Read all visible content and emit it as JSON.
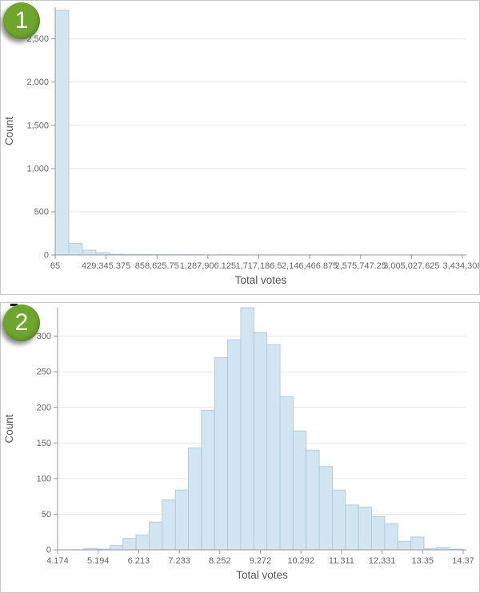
{
  "cards": [
    {
      "badge": "1"
    },
    {
      "badge": "2"
    }
  ],
  "colors": {
    "badge_green": "#6fa52d",
    "bar_fill": "#d3e5f0",
    "bar_stroke": "#aecde1",
    "axis_line": "#999999",
    "grid_line": "#e7e7e7",
    "tick_text": "#666666",
    "axis_title_text": "#575757"
  },
  "chart_data": [
    {
      "type": "bar",
      "title": "",
      "xlabel": "Total votes",
      "ylabel": "Count",
      "grid": "horizontal",
      "legend": "none",
      "bin_start": 65,
      "bin_width": 114474.77,
      "counts": [
        2830,
        135,
        55,
        27,
        8,
        6,
        5,
        3,
        2,
        4,
        2,
        1,
        2,
        1,
        0,
        1,
        0,
        1,
        0,
        0,
        1,
        0,
        0,
        0,
        0,
        0,
        0,
        0,
        0,
        1
      ],
      "xlim": [
        65,
        3434308
      ],
      "ylim": [
        0,
        2866
      ],
      "x_ticks": {
        "values": [
          65,
          429345.375,
          858625.75,
          1287906.125,
          1717186.5,
          2146466.875,
          2575747.25,
          3005027.625,
          3434308
        ],
        "labels": [
          "65",
          "429,345.375",
          "858,625.75",
          "1,287,906.125",
          "1,717,186.5",
          "2,146,466.875",
          "2,575,747.25",
          "3,005,027.625",
          "3,434,308"
        ]
      },
      "y_ticks": {
        "values": [
          0,
          500,
          1000,
          1500,
          2000,
          2500
        ],
        "labels": [
          "0",
          "500",
          "1,000",
          "1,500",
          "2,000",
          "2,500"
        ]
      }
    },
    {
      "type": "bar",
      "title": "",
      "xlabel": "Total votes",
      "ylabel": "Count",
      "grid": "horizontal",
      "legend": "none",
      "bin_start": 4.174,
      "bin_width": 0.3289,
      "counts": [
        0,
        0,
        2,
        1,
        6,
        16,
        21,
        39,
        70,
        84,
        143,
        196,
        270,
        295,
        340,
        305,
        288,
        215,
        167,
        140,
        117,
        84,
        63,
        60,
        47,
        37,
        12,
        18,
        2,
        3,
        1
      ],
      "xlim": [
        4.174,
        14.37
      ],
      "ylim": [
        0,
        340
      ],
      "x_ticks": {
        "values": [
          4.174,
          5.194,
          6.213,
          7.233,
          8.252,
          9.272,
          10.292,
          11.311,
          12.331,
          13.35,
          14.37
        ],
        "labels": [
          "4.174",
          "5.194",
          "6.213",
          "7.233",
          "8.252",
          "9.272",
          "10.292",
          "11.311",
          "12.331",
          "13.35",
          "14.37"
        ]
      },
      "y_ticks": {
        "values": [
          0,
          50,
          100,
          150,
          200,
          250,
          300
        ],
        "labels": [
          "0",
          "50",
          "100",
          "150",
          "200",
          "250",
          "300"
        ]
      }
    }
  ]
}
